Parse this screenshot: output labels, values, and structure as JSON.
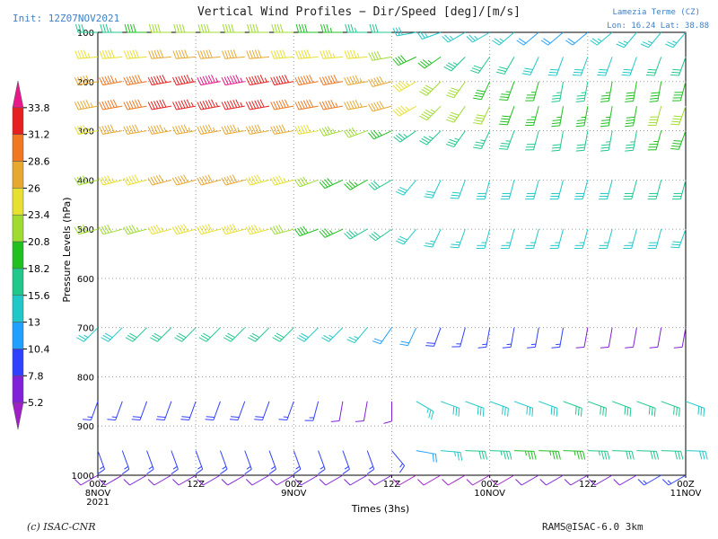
{
  "header": {
    "title": "Vertical Wind Profiles − Dir/Speed [deg]/[m/s]",
    "init": "Init: 12Z07NOV2021",
    "station": "Lamezia Terme (CZ)",
    "coords": "Lon: 16.24  Lat: 38.88"
  },
  "footer": {
    "left": "(c) ISAC-CNR",
    "right": "RAMS@ISAC-6.0 3km"
  },
  "chart_data": {
    "type": "wind_barbs",
    "title": "Vertical Wind Profiles − Dir/Speed [deg]/[m/s]",
    "xlabel": "Times (3hs)",
    "ylabel": "Pressure Levels (hPa)",
    "ylim": [
      1000,
      100
    ],
    "y_ticks": [
      100,
      200,
      300,
      400,
      500,
      600,
      700,
      800,
      900,
      1000
    ],
    "x_ticks": [
      {
        "t": 0,
        "lines": [
          "00Z",
          "8NOV",
          "2021"
        ]
      },
      {
        "t": 12,
        "lines": [
          "12Z"
        ]
      },
      {
        "t": 24,
        "lines": [
          "00Z",
          "9NOV"
        ]
      },
      {
        "t": 36,
        "lines": [
          "12Z"
        ]
      },
      {
        "t": 48,
        "lines": [
          "00Z",
          "10NOV"
        ]
      },
      {
        "t": 60,
        "lines": [
          "12Z"
        ]
      },
      {
        "t": 72,
        "lines": [
          "00Z",
          "11NOV"
        ]
      }
    ],
    "times_h": [
      0,
      3,
      6,
      9,
      12,
      15,
      18,
      21,
      24,
      27,
      30,
      33,
      36,
      39,
      42,
      45,
      48,
      51,
      54,
      57,
      60,
      63,
      66,
      69,
      72
    ],
    "grid": true,
    "colorbar": {
      "labels": [
        "33.8",
        "31.2",
        "28.6",
        "26",
        "23.4",
        "20.8",
        "18.2",
        "15.6",
        "13",
        "10.4",
        "7.8",
        "5.2"
      ],
      "colors": [
        "#e8178a",
        "#e62020",
        "#f07820",
        "#e8a830",
        "#e8e030",
        "#a0dc30",
        "#20c020",
        "#20c88c",
        "#20c8c8",
        "#20a0ff",
        "#3040ff",
        "#8020d8",
        "#a020c8"
      ]
    },
    "levels": [
      {
        "p": 100,
        "dir": [
          270,
          270,
          270,
          270,
          270,
          270,
          270,
          270,
          270,
          270,
          270,
          270,
          270,
          260,
          250,
          240,
          240,
          230,
          230,
          230,
          230,
          230,
          220,
          220,
          220
        ],
        "spd": [
          16,
          18,
          20,
          21,
          22,
          22,
          22,
          22,
          21,
          20,
          19,
          18,
          16,
          15,
          14,
          13,
          13,
          13,
          12,
          12,
          12,
          13,
          13,
          14,
          14
        ]
      },
      {
        "p": 150,
        "dir": [
          265,
          265,
          265,
          265,
          265,
          265,
          265,
          265,
          265,
          265,
          265,
          265,
          260,
          245,
          235,
          225,
          215,
          210,
          205,
          200,
          200,
          200,
          200,
          200,
          200
        ],
        "spd": [
          24,
          25,
          25,
          26,
          26,
          26,
          26,
          26,
          25,
          25,
          24,
          24,
          22,
          20,
          19,
          18,
          17,
          16,
          15,
          15,
          15,
          15,
          15,
          16,
          16
        ]
      },
      {
        "p": 200,
        "dir": [
          260,
          260,
          260,
          260,
          260,
          260,
          260,
          260,
          260,
          260,
          260,
          260,
          255,
          240,
          225,
          215,
          205,
          200,
          195,
          190,
          190,
          190,
          190,
          190,
          195
        ],
        "spd": [
          27,
          29,
          30,
          32,
          33,
          34,
          34,
          33,
          32,
          31,
          30,
          28,
          26,
          24,
          22,
          21,
          20,
          19,
          19,
          18,
          18,
          19,
          20,
          20,
          20
        ]
      },
      {
        "p": 250,
        "dir": [
          260,
          260,
          260,
          260,
          260,
          260,
          260,
          260,
          260,
          260,
          260,
          260,
          255,
          240,
          225,
          215,
          205,
          200,
          195,
          190,
          190,
          190,
          190,
          195,
          200
        ],
        "spd": [
          28,
          30,
          31,
          32,
          33,
          33,
          33,
          32,
          31,
          30,
          29,
          28,
          26,
          24,
          23,
          22,
          21,
          20,
          19,
          19,
          19,
          19,
          20,
          21,
          22
        ]
      },
      {
        "p": 300,
        "dir": [
          260,
          260,
          260,
          260,
          260,
          260,
          260,
          260,
          260,
          260,
          255,
          250,
          245,
          235,
          225,
          215,
          205,
          200,
          195,
          190,
          190,
          190,
          190,
          195,
          200
        ],
        "spd": [
          24,
          26,
          27,
          28,
          28,
          28,
          28,
          27,
          26,
          25,
          23,
          21,
          19,
          18,
          18,
          18,
          18,
          18,
          17,
          17,
          17,
          18,
          18,
          19,
          20
        ]
      },
      {
        "p": 400,
        "dir": [
          255,
          255,
          255,
          255,
          255,
          255,
          255,
          255,
          255,
          250,
          245,
          240,
          240,
          220,
          205,
          200,
          195,
          195,
          195,
          195,
          195,
          195,
          195,
          195,
          195
        ],
        "spd": [
          22,
          24,
          25,
          26,
          26,
          26,
          26,
          25,
          24,
          22,
          20,
          19,
          17,
          15,
          15,
          15,
          15,
          15,
          15,
          15,
          15,
          15,
          16,
          16,
          16
        ]
      },
      {
        "p": 500,
        "dir": [
          255,
          255,
          255,
          255,
          255,
          255,
          255,
          255,
          255,
          250,
          245,
          240,
          235,
          220,
          205,
          200,
          195,
          195,
          195,
          195,
          195,
          195,
          195,
          195,
          200
        ],
        "spd": [
          21,
          22,
          23,
          24,
          25,
          25,
          25,
          24,
          22,
          20,
          19,
          18,
          17,
          15,
          14,
          14,
          14,
          14,
          14,
          14,
          14,
          14,
          14,
          15,
          15
        ]
      },
      {
        "p": 700,
        "dir": [
          225,
          225,
          225,
          225,
          225,
          225,
          225,
          225,
          225,
          225,
          225,
          220,
          215,
          205,
          200,
          195,
          190,
          190,
          190,
          190,
          190,
          190,
          190,
          190,
          190
        ],
        "spd": [
          14,
          15,
          16,
          16,
          16,
          16,
          16,
          16,
          16,
          15,
          14,
          13,
          12,
          11,
          10,
          9,
          9,
          8,
          8,
          8,
          7,
          7,
          7,
          6,
          6
        ]
      },
      {
        "p": 850,
        "dir": [
          200,
          200,
          200,
          200,
          200,
          200,
          200,
          200,
          200,
          195,
          190,
          190,
          180,
          120,
          110,
          110,
          110,
          110,
          110,
          110,
          110,
          110,
          110,
          110,
          110
        ],
        "spd": [
          9,
          9,
          10,
          10,
          10,
          10,
          10,
          10,
          9,
          8,
          7,
          6,
          6,
          14,
          15,
          15,
          15,
          15,
          15,
          16,
          16,
          16,
          16,
          16,
          15
        ]
      },
      {
        "p": 950,
        "dir": [
          160,
          160,
          160,
          160,
          160,
          160,
          160,
          160,
          160,
          160,
          160,
          160,
          140,
          100,
          95,
          92,
          92,
          92,
          92,
          92,
          92,
          92,
          92,
          92,
          92
        ],
        "spd": [
          8,
          8,
          8,
          8,
          8,
          8,
          8,
          8,
          8,
          8,
          8,
          8,
          9,
          11,
          14,
          16,
          18,
          19,
          19,
          19,
          18,
          17,
          16,
          16,
          15
        ]
      },
      {
        "p": 1000,
        "dir": [
          240,
          240,
          240,
          240,
          240,
          240,
          240,
          240,
          240,
          240,
          240,
          240,
          240,
          240,
          240,
          240,
          240,
          240,
          240,
          240,
          240,
          240,
          240,
          240,
          240
        ],
        "spd": [
          6,
          6,
          6,
          6,
          6,
          6,
          6,
          6,
          6,
          6,
          6,
          6,
          6,
          5,
          5,
          5,
          5,
          5,
          6,
          6,
          6,
          7,
          7,
          8,
          9
        ]
      }
    ]
  }
}
